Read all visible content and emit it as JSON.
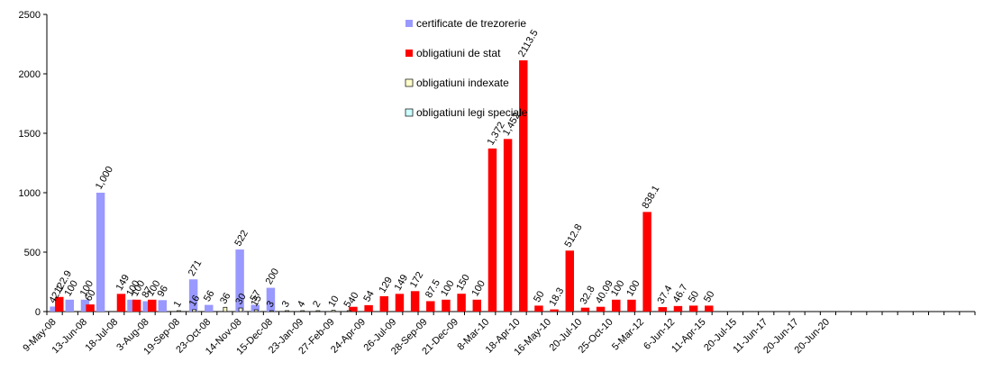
{
  "chart_data": {
    "type": "bar",
    "ylim": [
      0,
      2500
    ],
    "yticks": [
      0,
      500,
      1000,
      1500,
      2000,
      2500
    ],
    "grid": false,
    "legend_position": "top-center",
    "category_count": 60,
    "categories": [
      "9-May-08",
      "",
      "13-Jun-08",
      "",
      "18-Jul-08",
      "",
      "3-Aug-08",
      "",
      "19-Sep-08",
      "",
      "23-Oct-08",
      "",
      "14-Nov-08",
      "",
      "15-Dec-08",
      "",
      "23-Jan-09",
      "",
      "27-Feb-09",
      "",
      "24-Apr-09",
      "",
      "26-Jul-09",
      "",
      "28-Sep-09",
      "",
      "21-Dec-09",
      "",
      "8-Mar-10",
      "",
      "18-Apr-10",
      "",
      "16-May-10",
      "",
      "20-Jul-10",
      "",
      "25-Oct-10",
      "",
      "5-Mar-12",
      "",
      "6-Jun-12",
      "",
      "11-Apr-15",
      "",
      "20-Jul-15",
      "",
      "11-Jun-17",
      "",
      "20-Jun-17",
      "",
      "20-Jun-20",
      "",
      "",
      "",
      "",
      "",
      "",
      "",
      "",
      ""
    ],
    "series": [
      {
        "name": "certificate de trezorerie",
        "color": "#9999ff",
        "points": [
          {
            "i": 0,
            "v": 42.1,
            "label": "42.1"
          },
          {
            "i": 1,
            "v": 100,
            "label": "100"
          },
          {
            "i": 2,
            "v": 100,
            "label": "100"
          },
          {
            "i": 3,
            "v": 1000,
            "label": "1,000"
          },
          {
            "i": 5,
            "v": 100,
            "label": "100"
          },
          {
            "i": 6,
            "v": 87,
            "label": "87"
          },
          {
            "i": 7,
            "v": 96,
            "label": "96"
          },
          {
            "i": 9,
            "v": 271,
            "label": "271"
          },
          {
            "i": 10,
            "v": 56,
            "label": "56"
          },
          {
            "i": 12,
            "v": 522,
            "label": "522"
          },
          {
            "i": 13,
            "v": 57,
            "label": "57"
          },
          {
            "i": 14,
            "v": 200,
            "label": "200"
          }
        ]
      },
      {
        "name": "obligatiuni de stat",
        "color": "#ff0000",
        "points": [
          {
            "i": 0,
            "v": 122.9,
            "label": "122.9"
          },
          {
            "i": 2,
            "v": 60,
            "label": "60"
          },
          {
            "i": 4,
            "v": 149,
            "label": "149"
          },
          {
            "i": 5,
            "v": 100,
            "label": "100"
          },
          {
            "i": 6,
            "v": 100,
            "label": "100"
          },
          {
            "i": 19,
            "v": 40,
            "label": "40"
          },
          {
            "i": 20,
            "v": 54,
            "label": "54"
          },
          {
            "i": 21,
            "v": 129,
            "label": "129"
          },
          {
            "i": 22,
            "v": 149,
            "label": "149"
          },
          {
            "i": 23,
            "v": 172,
            "label": "172"
          },
          {
            "i": 24,
            "v": 87.5,
            "label": "87.5"
          },
          {
            "i": 25,
            "v": 100,
            "label": "100"
          },
          {
            "i": 26,
            "v": 150,
            "label": "150"
          },
          {
            "i": 27,
            "v": 100,
            "label": "100"
          },
          {
            "i": 28,
            "v": 1372,
            "label": "1,372"
          },
          {
            "i": 29,
            "v": 1452,
            "label": "1,452"
          },
          {
            "i": 30,
            "v": 2113.5,
            "label": "2113.5"
          },
          {
            "i": 31,
            "v": 50,
            "label": "50"
          },
          {
            "i": 32,
            "v": 18.3,
            "label": "18.3"
          },
          {
            "i": 33,
            "v": 512.8,
            "label": "512.8"
          },
          {
            "i": 34,
            "v": 32.8,
            "label": "32.8"
          },
          {
            "i": 35,
            "v": 40.09,
            "label": "40.09"
          },
          {
            "i": 36,
            "v": 100,
            "label": "100"
          },
          {
            "i": 37,
            "v": 100,
            "label": "100"
          },
          {
            "i": 38,
            "v": 838.1,
            "label": "838.1"
          },
          {
            "i": 39,
            "v": 37.4,
            "label": "37.4"
          },
          {
            "i": 40,
            "v": 46.7,
            "label": "46.7"
          },
          {
            "i": 41,
            "v": 50,
            "label": "50"
          },
          {
            "i": 42,
            "v": 50,
            "label": "50"
          }
        ]
      },
      {
        "name": "obligatiuni indexate",
        "color": "#ffffcc",
        "points": [
          {
            "i": 8,
            "v": 1,
            "label": "1"
          },
          {
            "i": 9,
            "v": 16,
            "label": "16"
          },
          {
            "i": 11,
            "v": 36,
            "label": "36"
          },
          {
            "i": 12,
            "v": 30,
            "label": "30"
          },
          {
            "i": 13,
            "v": 15,
            "label": "15"
          },
          {
            "i": 14,
            "v": 3,
            "label": "3"
          },
          {
            "i": 15,
            "v": 3,
            "label": "3"
          },
          {
            "i": 16,
            "v": 4,
            "label": "4"
          },
          {
            "i": 17,
            "v": 2,
            "label": "2"
          },
          {
            "i": 18,
            "v": 10,
            "label": "10"
          },
          {
            "i": 19,
            "v": 5,
            "label": "5"
          }
        ]
      },
      {
        "name": "obligatiuni legi speciale",
        "color": "#ccffff",
        "points": []
      }
    ],
    "xticks": [
      {
        "i": 0,
        "label": "9-May-08"
      },
      {
        "i": 2,
        "label": "13-Jun-08"
      },
      {
        "i": 4,
        "label": "18-Jul-08"
      },
      {
        "i": 6,
        "label": "3-Aug-08"
      },
      {
        "i": 8,
        "label": "19-Sep-08"
      },
      {
        "i": 10,
        "label": "23-Oct-08"
      },
      {
        "i": 12,
        "label": "14-Nov-08"
      },
      {
        "i": 14,
        "label": "15-Dec-08"
      },
      {
        "i": 16,
        "label": "23-Jan-09"
      },
      {
        "i": 18,
        "label": "27-Feb-09"
      },
      {
        "i": 20,
        "label": "24-Apr-09"
      },
      {
        "i": 22,
        "label": "26-Jul-09"
      },
      {
        "i": 24,
        "label": "28-Sep-09"
      },
      {
        "i": 26,
        "label": "21-Dec-09"
      },
      {
        "i": 28,
        "label": "8-Mar-10"
      },
      {
        "i": 30,
        "label": "18-Apr-10"
      },
      {
        "i": 32,
        "label": "16-May-10"
      },
      {
        "i": 34,
        "label": "20-Jul-10"
      },
      {
        "i": 36,
        "label": "25-Oct-10"
      },
      {
        "i": 38,
        "label": "5-Mar-12"
      },
      {
        "i": 40,
        "label": "6-Jun-12"
      },
      {
        "i": 42,
        "label": "11-Apr-15"
      },
      {
        "i": 44,
        "label": "20-Jul-15"
      },
      {
        "i": 46,
        "label": "11-Jun-17"
      },
      {
        "i": 48,
        "label": "20-Jun-17"
      },
      {
        "i": 50,
        "label": "20-Jun-20"
      }
    ]
  }
}
